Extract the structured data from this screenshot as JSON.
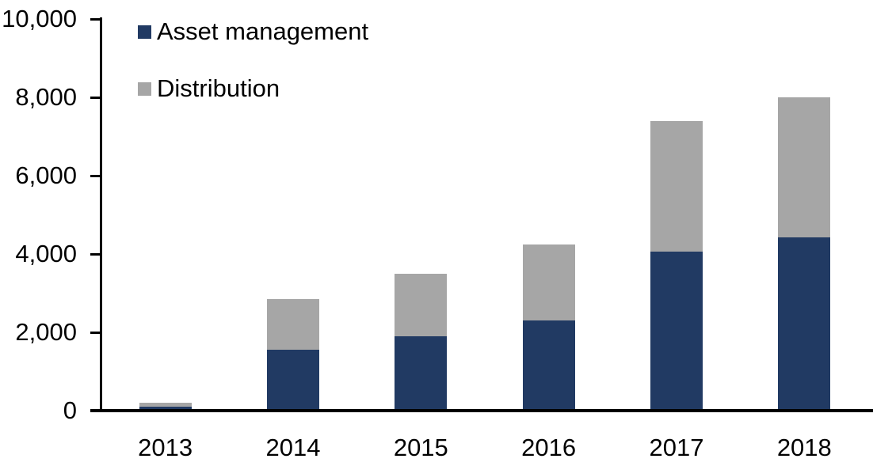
{
  "chart_data": {
    "type": "bar",
    "stacked": true,
    "title": "",
    "xlabel": "",
    "ylabel": "",
    "categories": [
      "2013",
      "2014",
      "2015",
      "2016",
      "2017",
      "2018"
    ],
    "series": [
      {
        "name": "Asset management",
        "color": "#213A63",
        "values": [
          100,
          1550,
          1900,
          2310,
          4060,
          4430
        ]
      },
      {
        "name": "Distribution",
        "color": "#A6A6A6",
        "values": [
          100,
          1300,
          1600,
          1940,
          3340,
          3570
        ]
      }
    ],
    "totals": [
      200,
      2850,
      3500,
      4250,
      7400,
      8000
    ],
    "ylim": [
      0,
      10000
    ],
    "y_ticks": [
      {
        "value": 0,
        "label": "0"
      },
      {
        "value": 2000,
        "label": "2,000"
      },
      {
        "value": 4000,
        "label": "4,000"
      },
      {
        "value": 6000,
        "label": "6,000"
      },
      {
        "value": 8000,
        "label": "8,000"
      },
      {
        "value": 10000,
        "label": "10,000"
      }
    ],
    "grid": false,
    "legend_position": "top-left",
    "axis_color": "#000000",
    "background_color": "#ffffff"
  }
}
